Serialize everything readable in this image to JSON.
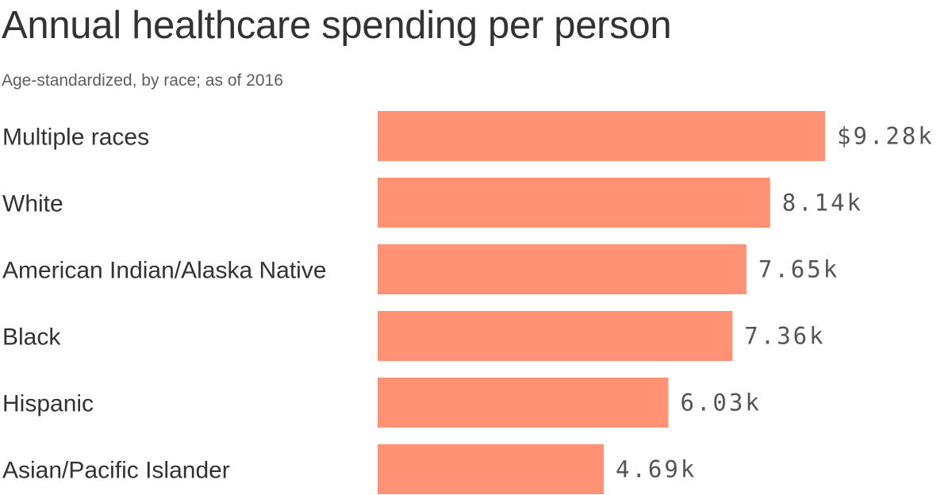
{
  "chart_data": {
    "type": "bar",
    "orientation": "horizontal",
    "title": "Annual healthcare spending per person",
    "subtitle": "Age-standardized, by race; as of 2016",
    "categories": [
      "Multiple races",
      "White",
      "American Indian/Alaska Native",
      "Black",
      "Hispanic",
      "Asian/Pacific Islander"
    ],
    "values": [
      9.28,
      8.14,
      7.65,
      7.36,
      6.03,
      4.69
    ],
    "value_labels": [
      "$9.28k",
      "8.14k",
      "7.65k",
      "7.36k",
      "6.03k",
      "4.69k"
    ],
    "unit": "thousand USD",
    "xlim": [
      0,
      9.28
    ],
    "grid": false,
    "legend": "none",
    "bar_color": "#ff9175"
  }
}
